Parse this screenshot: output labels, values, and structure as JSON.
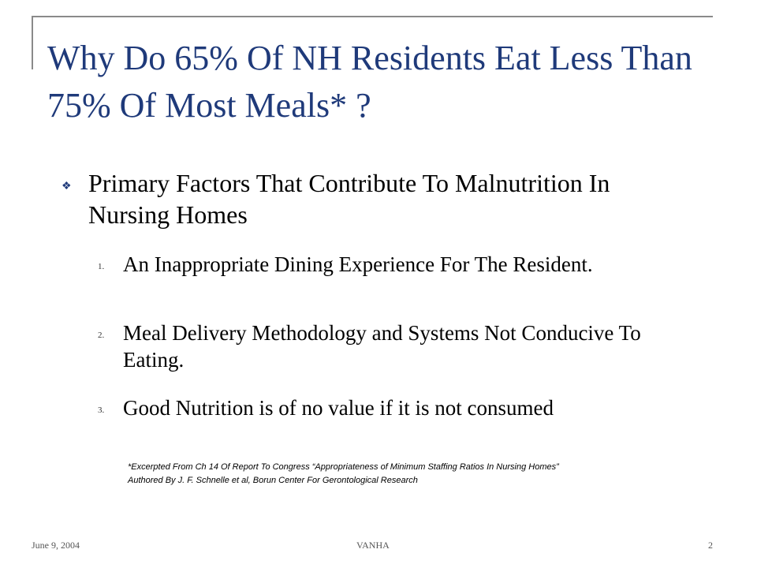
{
  "slide": {
    "title": "Why Do 65% Of NH Residents Eat Less Than 75% Of Most Meals* ?",
    "bullet": {
      "icon": "diamond-bullet-icon",
      "text": "Primary Factors That Contribute To Malnutrition In Nursing Homes"
    },
    "items": [
      {
        "num": "1.",
        "text": "An Inappropriate Dining Experience For The Resident."
      },
      {
        "num": "2.",
        "text": "Meal Delivery Methodology and Systems Not Conducive To Eating."
      },
      {
        "num": "3.",
        "text": "Good Nutrition is of no value if it is not consumed"
      }
    ],
    "footnote": {
      "line1": "*Excerpted From Ch 14 Of Report To Congress “Appropriateness of Minimum Staffing Ratios In Nursing Homes”",
      "line2": "Authored By J. F. Schnelle et al, Borun Center For Gerontological Research"
    },
    "footer": {
      "date": "June 9, 2004",
      "center": "VANHA",
      "page": "2"
    },
    "colors": {
      "title": "#1f3a7a",
      "frame": "#8a8a8a"
    }
  }
}
